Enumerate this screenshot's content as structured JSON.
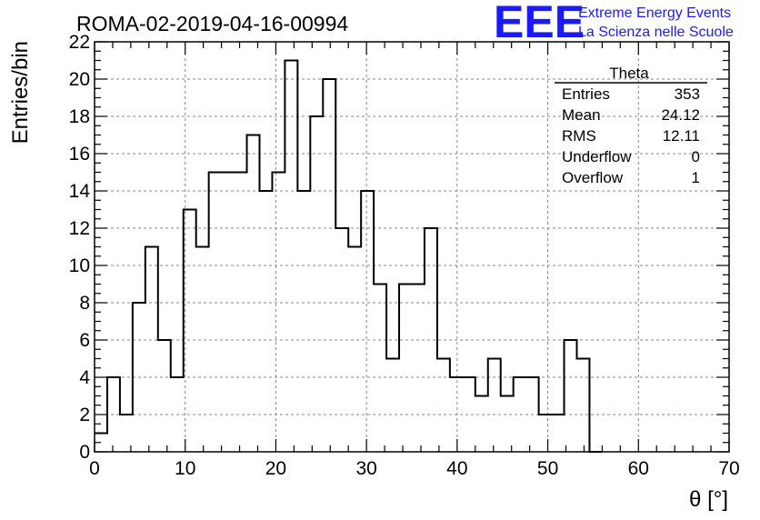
{
  "chart_data": {
    "type": "histogram",
    "title": "ROMA-02-2019-04-16-00994",
    "xlabel": "θ [°]",
    "ylabel": "Entries/bin",
    "xlim": [
      0,
      70
    ],
    "ylim": [
      0,
      22
    ],
    "grid": true,
    "bin_width": 1.4,
    "x_ticks": [
      "0",
      "10",
      "20",
      "30",
      "40",
      "50",
      "60",
      "70"
    ],
    "y_ticks": [
      "0",
      "2",
      "4",
      "6",
      "8",
      "10",
      "12",
      "14",
      "16",
      "18",
      "20",
      "22"
    ],
    "bin_edges_start": 0.0,
    "counts": [
      1,
      4,
      2,
      8,
      11,
      6,
      4,
      13,
      11,
      15,
      15,
      15,
      17,
      14,
      15,
      21,
      14,
      18,
      20,
      12,
      11,
      14,
      9,
      5,
      9,
      9,
      12,
      5,
      4,
      4,
      3,
      5,
      3,
      4,
      4,
      2,
      2,
      6,
      5,
      0
    ],
    "stats_box": {
      "title": "Theta",
      "rows": [
        {
          "label": "Entries",
          "value": "353"
        },
        {
          "label": "Mean",
          "value": "24.12"
        },
        {
          "label": "RMS",
          "value": "12.11"
        },
        {
          "label": "Underflow",
          "value": "0"
        },
        {
          "label": "Overflow",
          "value": "1"
        }
      ]
    }
  },
  "logo": {
    "text": "EEE",
    "line1": "Extreme Energy Events",
    "line2": "La Scienza nelle Scuole",
    "color": "#1a1aff"
  }
}
